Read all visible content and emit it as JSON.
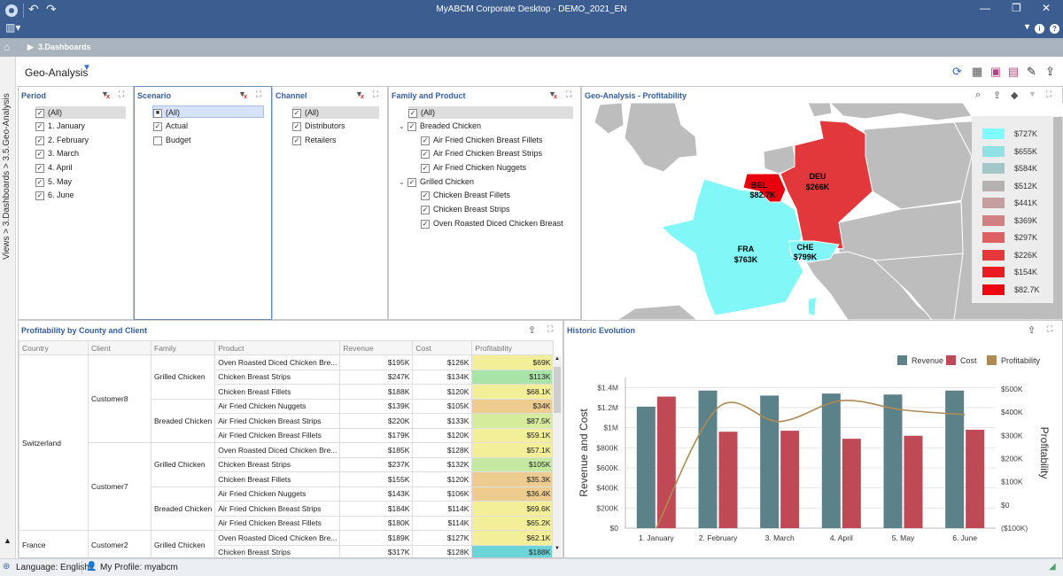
{
  "window": {
    "title": "MyABCM Corporate Desktop - DEMO_2021_EN"
  },
  "breadcrumb": {
    "label": "3.Dashboards"
  },
  "page": {
    "title": "Geo-Analysis"
  },
  "sidebar": {
    "path": "Views > 3.Dashboards > 3.5.Geo-Analysis"
  },
  "period": {
    "title": "Period",
    "items": [
      "(All)",
      "1. January",
      "2. February",
      "3. March",
      "4. April",
      "5. May",
      "6. June"
    ]
  },
  "scenario": {
    "title": "Scenario",
    "items": [
      "(All)",
      "Actual",
      "Budget"
    ]
  },
  "channel": {
    "title": "Channel",
    "items": [
      "(All)",
      "Distributors",
      "Retailers"
    ]
  },
  "family": {
    "title": "Family and Product",
    "all": "(All)",
    "groups": [
      {
        "label": "Breaded Chicken",
        "items": [
          "Air Fried Chicken Breast Fillets",
          "Air Fried Chicken Breast Strips",
          "Air Fried Chicken Nuggets"
        ]
      },
      {
        "label": "Grilled Chicken",
        "items": [
          "Chicken Breast Fillets",
          "Chicken Breast Strips",
          "Oven Roasted Diced Chicken Breast"
        ]
      }
    ]
  },
  "geo": {
    "title": "Geo-Analysis - Profitability",
    "regions": {
      "deu": {
        "code": "DEU",
        "value": "$266K"
      },
      "bel": {
        "code": "BEL",
        "value": "$82.7K"
      },
      "fra": {
        "code": "FRA",
        "value": "$763K"
      },
      "che": {
        "code": "CHE",
        "value": "$799K"
      }
    },
    "colors": {
      "fra": "#82f7f7",
      "deu": "#e2383b",
      "bel": "#e8000f",
      "che": "#82f7f7",
      "land": "#bdbdbd"
    },
    "legend": [
      {
        "label": "$727K",
        "color": "#80fdff"
      },
      {
        "label": "$655K",
        "color": "#8ee2e3"
      },
      {
        "label": "$584K",
        "color": "#a3c6c6"
      },
      {
        "label": "$512K",
        "color": "#b5b1b1"
      },
      {
        "label": "$441K",
        "color": "#c49fa0"
      },
      {
        "label": "$369K",
        "color": "#d08283"
      },
      {
        "label": "$297K",
        "color": "#dd6063"
      },
      {
        "label": "$226K",
        "color": "#e5393c"
      },
      {
        "label": "$154K",
        "color": "#ea1b23"
      },
      {
        "label": "$82.7K",
        "color": "#ee0010"
      }
    ]
  },
  "profit": {
    "title": "Profitability by County and Client",
    "columns": [
      "Country",
      "Client",
      "Family",
      "Product",
      "Revenue",
      "Cost",
      "Profitability"
    ],
    "countries": {
      "switzerland": "Switzerland",
      "france": "France"
    },
    "clients": {
      "c8": "Customer8",
      "c7": "Customer7",
      "c2": "Customer2"
    },
    "families": {
      "grilled": "Grilled Chicken",
      "breaded": "Breaded Chicken"
    },
    "rows": [
      {
        "product": "Oven Roasted Diced Chicken Bre...",
        "revenue": "$195K",
        "cost": "$126K",
        "profit": "$69K",
        "color": "#f2ef98"
      },
      {
        "product": "Chicken Breast Strips",
        "revenue": "$247K",
        "cost": "$134K",
        "profit": "$113K",
        "color": "#a9e3a8"
      },
      {
        "product": "Chicken Breast Fillets",
        "revenue": "$188K",
        "cost": "$120K",
        "profit": "$68.1K",
        "color": "#f2ef98"
      },
      {
        "product": "Air Fried Chicken Nuggets",
        "revenue": "$139K",
        "cost": "$105K",
        "profit": "$34K",
        "color": "#eecb8e"
      },
      {
        "product": "Air Fried Chicken Breast Strips",
        "revenue": "$220K",
        "cost": "$133K",
        "profit": "$87.5K",
        "color": "#d6ec9c"
      },
      {
        "product": "Air Fried Chicken Breast Fillets",
        "revenue": "$179K",
        "cost": "$120K",
        "profit": "$59.1K",
        "color": "#f2ef98"
      },
      {
        "product": "Oven Roasted Diced Chicken Bre...",
        "revenue": "$185K",
        "cost": "$128K",
        "profit": "$57.1K",
        "color": "#f2ef98"
      },
      {
        "product": "Chicken Breast Strips",
        "revenue": "$237K",
        "cost": "$132K",
        "profit": "$105K",
        "color": "#c4e89f"
      },
      {
        "product": "Chicken Breast Fillets",
        "revenue": "$155K",
        "cost": "$120K",
        "profit": "$35.3K",
        "color": "#eecb8e"
      },
      {
        "product": "Air Fried Chicken Nuggets",
        "revenue": "$143K",
        "cost": "$106K",
        "profit": "$36.4K",
        "color": "#eecb8e"
      },
      {
        "product": "Air Fried Chicken Breast Strips",
        "revenue": "$184K",
        "cost": "$114K",
        "profit": "$69.6K",
        "color": "#f2ef98"
      },
      {
        "product": "Air Fried Chicken Breast Fillets",
        "revenue": "$180K",
        "cost": "$114K",
        "profit": "$65.2K",
        "color": "#f2ef98"
      },
      {
        "product": "Oven Roasted Diced Chicken Bre...",
        "revenue": "$189K",
        "cost": "$127K",
        "profit": "$62.1K",
        "color": "#f2ef98"
      },
      {
        "product": "Chicken Breast Strips",
        "revenue": "$317K",
        "cost": "$128K",
        "profit": "$188K",
        "color": "#6ad4d6"
      }
    ]
  },
  "historic": {
    "title": "Historic Evolution"
  },
  "chart_data": {
    "type": "bar",
    "categories": [
      "1. January",
      "2. February",
      "3. March",
      "4. April",
      "5. May",
      "6. June"
    ],
    "series": [
      {
        "name": "Revenue",
        "type": "bar",
        "axis": "left",
        "color": "#5b8189",
        "values": [
          1210000,
          1370000,
          1320000,
          1340000,
          1330000,
          1370000
        ]
      },
      {
        "name": "Cost",
        "type": "bar",
        "axis": "left",
        "color": "#bf4a55",
        "values": [
          1310000,
          960000,
          970000,
          890000,
          920000,
          980000
        ]
      },
      {
        "name": "Profitability",
        "type": "line",
        "axis": "right",
        "color": "#b08a52",
        "values": [
          -100000,
          420000,
          360000,
          450000,
          410000,
          390000
        ]
      }
    ],
    "ylabel": "Revenue and Cost",
    "y2label": "Profitability",
    "ylim": [
      0,
      1500000
    ],
    "y2lim": [
      -100000,
      550000
    ],
    "yticks": [
      "$0",
      "$200K",
      "$400K",
      "$600K",
      "$800K",
      "$1M",
      "$1.2M",
      "$1.4M"
    ],
    "y2ticks": [
      "($100K)",
      "$0",
      "$100K",
      "$200K",
      "$300K",
      "$400K",
      "$500K"
    ],
    "grid": true,
    "legend": "top-right"
  },
  "status": {
    "language": "Language: English",
    "profile": "My Profile: myabcm"
  }
}
